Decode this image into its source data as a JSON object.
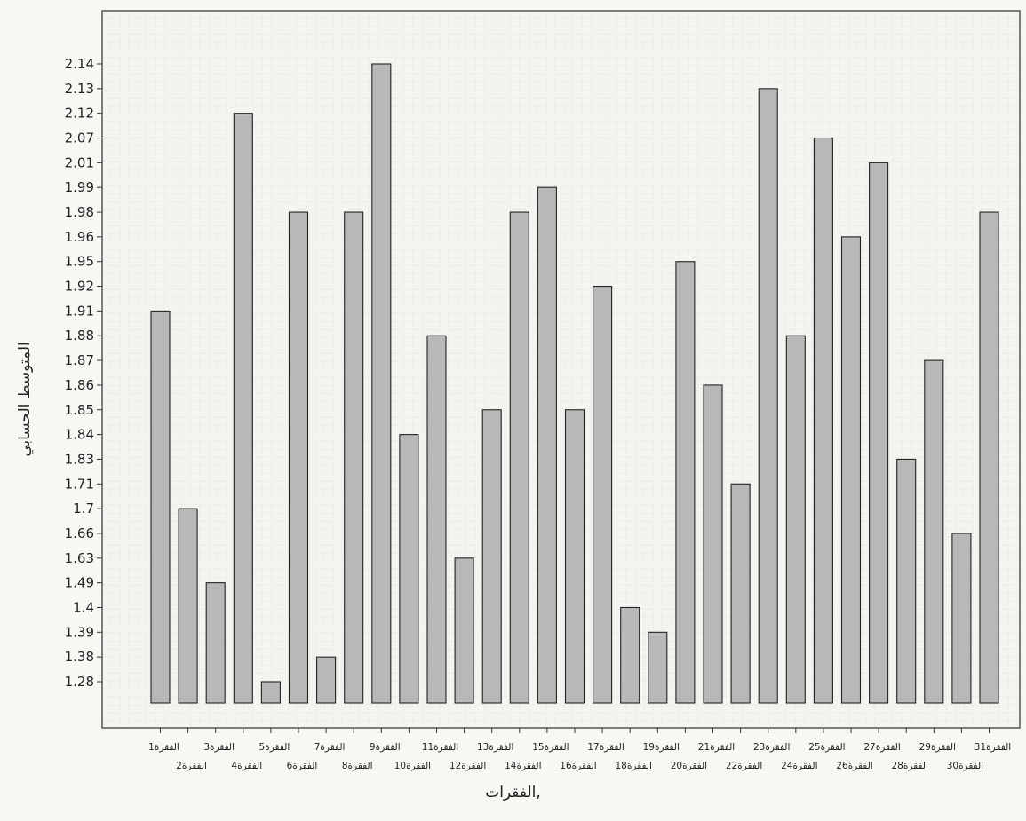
{
  "chart_data": {
    "type": "bar",
    "xlabel": "الفقرات,",
    "ylabel": "المتوسط الحسابي",
    "y_ticks": [
      "1.28",
      "1.38",
      "1.39",
      "1.4",
      "1.49",
      "1.63",
      "1.66",
      "1.7",
      "1.71",
      "1.83",
      "1.84",
      "1.85",
      "1.86",
      "1.87",
      "1.88",
      "1.91",
      "1.92",
      "1.95",
      "1.96",
      "1.98",
      "1.99",
      "2.01",
      "2.07",
      "2.12",
      "2.13",
      "2.14"
    ],
    "categories": [
      "الفقرة1",
      "الفقرة2",
      "الفقرة3",
      "الفقرة4",
      "الفقرة5",
      "الفقرة6",
      "الفقرة7",
      "الفقرة8",
      "الفقرة9",
      "الفقرة10",
      "الفقرة11",
      "الفقرة12",
      "الفقرة13",
      "الفقرة14",
      "الفقرة15",
      "الفقرة16",
      "الفقرة17",
      "الفقرة18",
      "الفقرة19",
      "الفقرة20",
      "الفقرة21",
      "الفقرة22",
      "الفقرة23",
      "الفقرة24",
      "الفقرة25",
      "الفقرة26",
      "الفقرة27",
      "الفقرة28",
      "الفقرة29",
      "الفقرة30",
      "الفقرة31"
    ],
    "values": [
      1.91,
      1.7,
      1.49,
      2.12,
      1.28,
      1.98,
      1.38,
      1.98,
      2.14,
      1.84,
      1.88,
      1.63,
      1.85,
      1.98,
      1.99,
      1.85,
      1.92,
      1.4,
      1.39,
      1.95,
      1.86,
      1.71,
      2.13,
      1.88,
      2.07,
      1.96,
      2.01,
      1.83,
      1.87,
      1.66,
      1.98
    ],
    "legend": "none",
    "grid": true,
    "bar_color": "#b8b8b8"
  }
}
